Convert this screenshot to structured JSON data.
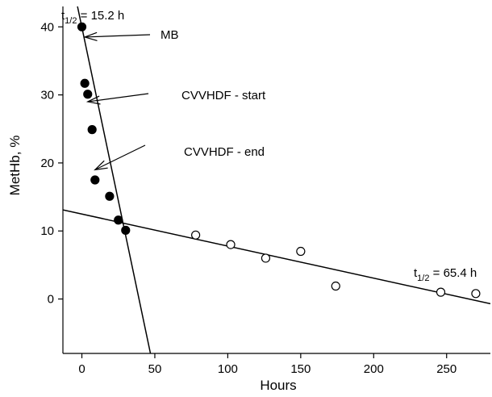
{
  "chart_data": {
    "type": "scatter",
    "xlabel": "Hours",
    "ylabel": "MetHb, %",
    "xlim": [
      -13,
      280
    ],
    "ylim": [
      -8,
      43
    ],
    "xticks": [
      0,
      50,
      100,
      150,
      200,
      250
    ],
    "yticks": [
      0,
      10,
      20,
      30,
      40
    ],
    "grid": false,
    "series": [
      {
        "marker": "filled-circle",
        "x": [
          0,
          2,
          4,
          7,
          9,
          19,
          25,
          30
        ],
        "y": [
          40.0,
          31.7,
          30.1,
          24.9,
          17.5,
          15.1,
          11.6,
          10.1
        ]
      },
      {
        "marker": "open-circle",
        "x": [
          78,
          102,
          126,
          150,
          174,
          246,
          270
        ],
        "y": [
          9.4,
          8.0,
          6.0,
          7.0,
          1.9,
          1.0,
          0.8
        ]
      }
    ],
    "fit_lines": [
      {
        "x": [
          -3,
          47
        ],
        "y": [
          43,
          -8
        ]
      },
      {
        "x": [
          -13,
          280
        ],
        "y": [
          13.1,
          -0.7
        ]
      }
    ],
    "annotations": [
      {
        "text": "MB",
        "point": [
          2,
          38.5
        ]
      },
      {
        "text": "CVVHDF - start",
        "point": [
          4,
          29.0
        ]
      },
      {
        "text": "CVVHDF - end",
        "point": [
          9,
          19.0
        ]
      }
    ],
    "half_lives": [
      {
        "prefix": "t",
        "subscript": "1/2",
        "suffix": " = 15.2 h"
      },
      {
        "prefix": "t",
        "subscript": "1/2",
        "suffix": " = 65.4 h"
      }
    ]
  }
}
